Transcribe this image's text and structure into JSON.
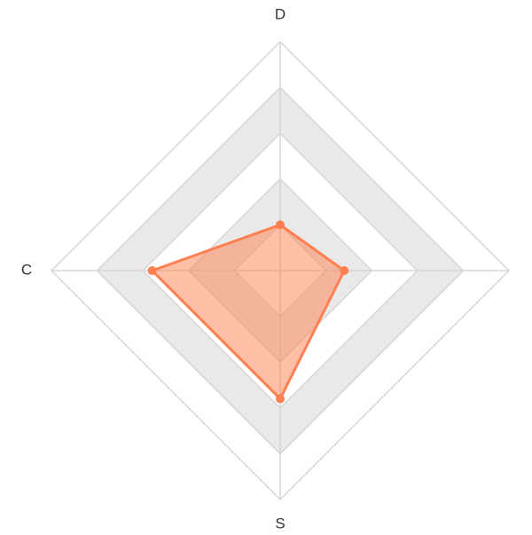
{
  "chart_data": {
    "type": "radar",
    "indicators": [
      "D",
      null,
      "S",
      "C"
    ],
    "max": 5,
    "rings": 5,
    "series": [
      {
        "name": null,
        "color": "#ff7f50",
        "values": [
          1,
          1.4,
          2.8,
          2.8
        ]
      }
    ]
  }
}
